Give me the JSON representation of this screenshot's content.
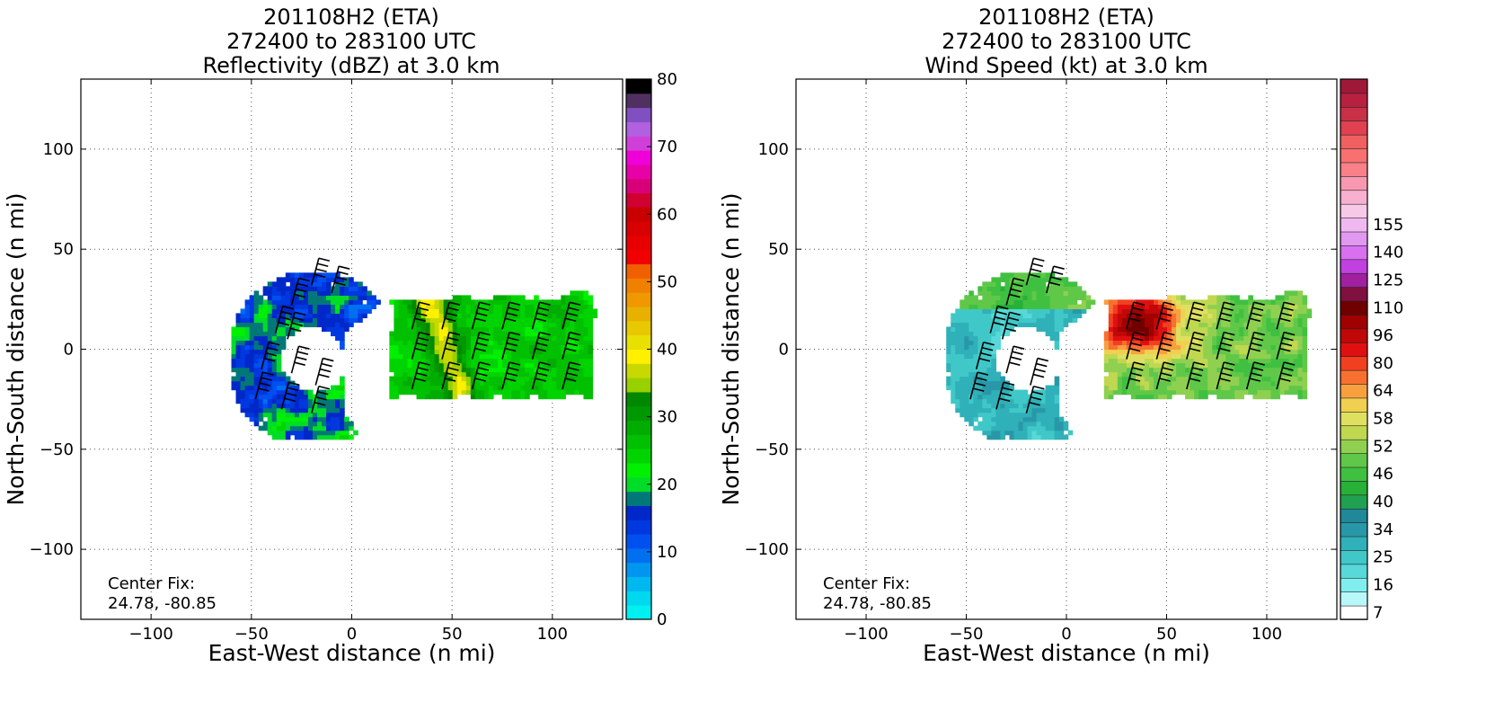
{
  "chart_data": [
    {
      "type": "heatmap",
      "title": [
        "201108H2 (ETA)",
        "272400 to 283100 UTC",
        "Reflectivity (dBZ) at 3.0 km"
      ],
      "xlabel": "East-West distance (n mi)",
      "ylabel": "North-South distance (n mi)",
      "xlim": [
        -135,
        135
      ],
      "ylim": [
        -135,
        135
      ],
      "xticks": [
        -100,
        -50,
        0,
        50,
        100
      ],
      "xtick_labels": [
        "−100",
        "−50",
        "0",
        "50",
        "100"
      ],
      "yticks": [
        100,
        50,
        0,
        -50,
        -100
      ],
      "ytick_labels": [
        "100",
        "50",
        "0",
        "−50",
        "−100"
      ],
      "grid": true,
      "annotation": [
        "Center Fix:",
        "24.78, -80.85"
      ],
      "colorbar": {
        "min": 0,
        "max": 80,
        "ticks": [
          0,
          10,
          20,
          30,
          40,
          50,
          60,
          70,
          80
        ],
        "tick_labels": [
          "0",
          "10",
          "20",
          "30",
          "40",
          "50",
          "60",
          "70",
          "80"
        ],
        "colors": [
          "#00f0f0",
          "#00d8f0",
          "#00b8f0",
          "#0096f0",
          "#0070f0",
          "#0050f0",
          "#0038e0",
          "#0028c8",
          "#007878",
          "#00dc28",
          "#00f000",
          "#00d400",
          "#00c000",
          "#00ac00",
          "#009800",
          "#008800",
          "#98d000",
          "#c8d800",
          "#fff000",
          "#e8e000",
          "#e8c800",
          "#e8b000",
          "#f09800",
          "#f08000",
          "#f06000",
          "#f00000",
          "#e80000",
          "#d80000",
          "#c80000",
          "#d00030",
          "#d80078",
          "#e800a8",
          "#f000d8",
          "#d040d8",
          "#b060e0",
          "#8050c0",
          "#503060",
          "#000000"
        ]
      },
      "features": [
        {
          "type": "arc-echo",
          "center": [
            -22,
            -5
          ],
          "r_outer": 40,
          "r_inner": 15,
          "a_start": 60,
          "a_end": 290,
          "intensity": "moderate"
        },
        {
          "type": "band",
          "x": [
            20,
            120
          ],
          "y": [
            -28,
            28
          ],
          "intensity": "strong"
        },
        {
          "type": "barbs",
          "wind_speed": "25-45 kt"
        }
      ]
    },
    {
      "type": "heatmap",
      "title": [
        "201108H2 (ETA)",
        "272400 to 283100 UTC",
        "Wind Speed (kt) at 3.0 km"
      ],
      "xlabel": "East-West distance (n mi)",
      "ylabel": "North-South distance (n mi)",
      "xlim": [
        -135,
        135
      ],
      "ylim": [
        -135,
        135
      ],
      "xticks": [
        -100,
        -50,
        0,
        50,
        100
      ],
      "xtick_labels": [
        "−100",
        "−50",
        "0",
        "50",
        "100"
      ],
      "yticks": [
        100,
        50,
        0,
        -50,
        -100
      ],
      "ytick_labels": [
        "100",
        "50",
        "0",
        "−50",
        "−100"
      ],
      "grid": true,
      "annotation": [
        "Center Fix:",
        "24.78, -80.85"
      ],
      "colorbar": {
        "ticks_bottom_to_top": [
          "7",
          "16",
          "25",
          "34",
          "40",
          "46",
          "52",
          "58",
          "64",
          "80",
          "96",
          "110",
          "125",
          "140",
          "155"
        ],
        "colors": [
          "#ffffff",
          "#b8f8f8",
          "#80eeee",
          "#58d8d8",
          "#40c8c8",
          "#30b0b8",
          "#2898a8",
          "#208898",
          "#20a050",
          "#28b038",
          "#40c040",
          "#60c848",
          "#90d050",
          "#c0d850",
          "#e0e060",
          "#f0d050",
          "#f8a040",
          "#f87030",
          "#f04020",
          "#e01010",
          "#c00808",
          "#a00000",
          "#700000",
          "#801040",
          "#a020a0",
          "#c040e0",
          "#d870f0",
          "#e098f0",
          "#f0b8f0",
          "#f8c8e8",
          "#f8b0d0",
          "#f898b0",
          "#f88088",
          "#f87070",
          "#f06060",
          "#e04050",
          "#c83048",
          "#b82040",
          "#a01838"
        ]
      },
      "features": [
        {
          "type": "arc-low-wind",
          "center": [
            -22,
            -8
          ],
          "r_outer": 40,
          "r_inner": 14,
          "wind": "20-30 kt"
        },
        {
          "type": "band",
          "x": [
            20,
            110
          ],
          "y": [
            -25,
            25
          ],
          "wind": "40-60 kt",
          "max_near": [
            35,
            15
          ]
        },
        {
          "type": "barbs",
          "wind_speed": "25-45 kt"
        }
      ]
    }
  ]
}
